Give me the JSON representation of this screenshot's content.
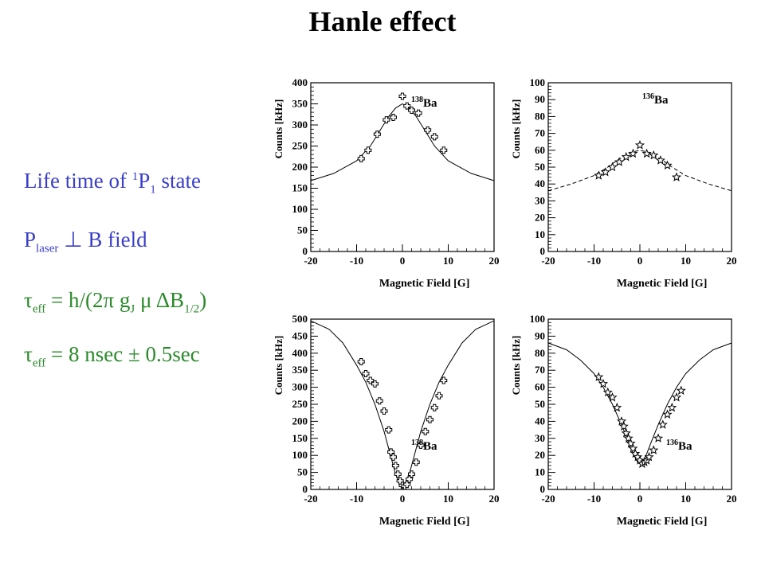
{
  "title": "Hanle effect",
  "text": {
    "line1": {
      "main": "Life time of ",
      "sup": "1",
      "mid": "P",
      "sub": "1",
      "tail": " state"
    },
    "line2": {
      "main": "P",
      "sub": "laser",
      "tail": " ⊥ B field"
    },
    "line3": {
      "tau": "τ",
      "sub": "eff",
      "mid": " = h/(2π g",
      "sub2": "J",
      "mid2": " μ ΔB",
      "sub3": "1/2",
      "tail": ")"
    },
    "line4": {
      "tau": "τ",
      "sub": "eff",
      "tail": " = 8 nsec ± 0.5sec"
    }
  },
  "colors": {
    "blue_text": "#3a3ec8",
    "green_text": "#2a8a2a"
  },
  "chart_data": [
    {
      "type": "scatter",
      "isotope_mass": "138",
      "isotope_symbol": "Ba",
      "xlabel": "Magnetic Field [G]",
      "ylabel": "Counts [kHz]",
      "xlim": [
        -20,
        20
      ],
      "ylim": [
        0,
        400
      ],
      "xticks": [
        -20,
        -10,
        0,
        10,
        20
      ],
      "yticks": [
        0,
        50,
        100,
        150,
        200,
        250,
        300,
        350,
        400
      ],
      "marker": "cross",
      "fit_style": "solid",
      "points": [
        [
          -9,
          220
        ],
        [
          -7.5,
          240
        ],
        [
          -5.5,
          278
        ],
        [
          -3.5,
          312
        ],
        [
          -2,
          318
        ],
        [
          0,
          368
        ],
        [
          1,
          345
        ],
        [
          2,
          335
        ],
        [
          3.5,
          328
        ],
        [
          5.5,
          288
        ],
        [
          7,
          272
        ],
        [
          9,
          240
        ]
      ],
      "fit_curve": [
        [
          -20,
          168
        ],
        [
          -15,
          185
        ],
        [
          -10,
          215
        ],
        [
          -7,
          250
        ],
        [
          -5,
          285
        ],
        [
          -3,
          320
        ],
        [
          -1.5,
          340
        ],
        [
          0,
          350
        ],
        [
          1.5,
          340
        ],
        [
          3,
          320
        ],
        [
          5,
          285
        ],
        [
          7,
          250
        ],
        [
          10,
          215
        ],
        [
          15,
          185
        ],
        [
          20,
          168
        ]
      ]
    },
    {
      "type": "scatter",
      "isotope_mass": "136",
      "isotope_symbol": "Ba",
      "xlabel": "Magnetic Field [G]",
      "ylabel": "Counts [kHz]",
      "xlim": [
        -20,
        20
      ],
      "ylim": [
        0,
        100
      ],
      "xticks": [
        -20,
        -10,
        0,
        10,
        20
      ],
      "yticks": [
        0,
        10,
        20,
        30,
        40,
        50,
        60,
        70,
        80,
        90,
        100
      ],
      "marker": "star",
      "fit_style": "dashed",
      "points": [
        [
          -9,
          45
        ],
        [
          -7.5,
          47
        ],
        [
          -6,
          50
        ],
        [
          -4.5,
          53
        ],
        [
          -3,
          56
        ],
        [
          -1.5,
          58
        ],
        [
          0,
          63
        ],
        [
          1.5,
          58
        ],
        [
          3,
          57
        ],
        [
          4.5,
          54
        ],
        [
          6,
          51
        ],
        [
          8,
          44
        ]
      ],
      "fit_curve": [
        [
          -20,
          36
        ],
        [
          -15,
          40
        ],
        [
          -10,
          45
        ],
        [
          -7,
          50
        ],
        [
          -5,
          54
        ],
        [
          -3,
          57
        ],
        [
          -1.5,
          59
        ],
        [
          0,
          60
        ],
        [
          1.5,
          59
        ],
        [
          3,
          57
        ],
        [
          5,
          54
        ],
        [
          7,
          50
        ],
        [
          10,
          45
        ],
        [
          15,
          40
        ],
        [
          20,
          36
        ]
      ]
    },
    {
      "type": "scatter",
      "isotope_mass": "138",
      "isotope_symbol": "Ba",
      "xlabel": "Magnetic Field [G]",
      "ylabel": "Counts [kHz]",
      "xlim": [
        -20,
        20
      ],
      "ylim": [
        0,
        500
      ],
      "xticks": [
        -20,
        -10,
        0,
        10,
        20
      ],
      "yticks": [
        0,
        50,
        100,
        150,
        200,
        250,
        300,
        350,
        400,
        450,
        500
      ],
      "marker": "cross",
      "fit_style": "solid",
      "points": [
        [
          -9,
          375
        ],
        [
          -8,
          340
        ],
        [
          -7,
          320
        ],
        [
          -6,
          310
        ],
        [
          -5,
          260
        ],
        [
          -4,
          230
        ],
        [
          -3,
          175
        ],
        [
          -2.5,
          110
        ],
        [
          -2,
          95
        ],
        [
          -1.5,
          70
        ],
        [
          -1,
          45
        ],
        [
          -0.5,
          25
        ],
        [
          0,
          12
        ],
        [
          0.5,
          10
        ],
        [
          1,
          15
        ],
        [
          1.5,
          30
        ],
        [
          2,
          45
        ],
        [
          3,
          80
        ],
        [
          4,
          130
        ],
        [
          5,
          170
        ],
        [
          6,
          205
        ],
        [
          7,
          240
        ],
        [
          8,
          275
        ],
        [
          9,
          320
        ]
      ],
      "fit_curve": [
        [
          -20,
          495
        ],
        [
          -16,
          470
        ],
        [
          -13,
          430
        ],
        [
          -10,
          365
        ],
        [
          -8,
          315
        ],
        [
          -6,
          250
        ],
        [
          -4,
          170
        ],
        [
          -2.5,
          95
        ],
        [
          -1.5,
          45
        ],
        [
          -0.5,
          12
        ],
        [
          0,
          8
        ],
        [
          0.5,
          12
        ],
        [
          1.5,
          45
        ],
        [
          2.5,
          95
        ],
        [
          4,
          170
        ],
        [
          6,
          250
        ],
        [
          8,
          315
        ],
        [
          10,
          365
        ],
        [
          13,
          430
        ],
        [
          16,
          470
        ],
        [
          20,
          495
        ]
      ]
    },
    {
      "type": "scatter",
      "isotope_mass": "136",
      "isotope_symbol": "Ba",
      "xlabel": "Magnetic Field [G]",
      "ylabel": "Counts [kHz]",
      "xlim": [
        -20,
        20
      ],
      "ylim": [
        0,
        100
      ],
      "xticks": [
        -20,
        -10,
        0,
        10,
        20
      ],
      "yticks": [
        0,
        10,
        20,
        30,
        40,
        50,
        60,
        70,
        80,
        90,
        100
      ],
      "marker": "star",
      "fit_style": "solid",
      "points": [
        [
          -9,
          66
        ],
        [
          -8,
          62
        ],
        [
          -7,
          57
        ],
        [
          -6,
          54
        ],
        [
          -5,
          48
        ],
        [
          -4,
          40
        ],
        [
          -3.5,
          37
        ],
        [
          -3,
          33
        ],
        [
          -2.5,
          30
        ],
        [
          -2,
          27
        ],
        [
          -1.5,
          24
        ],
        [
          -1,
          21
        ],
        [
          -0.5,
          19
        ],
        [
          0,
          17
        ],
        [
          0.5,
          15
        ],
        [
          1,
          16
        ],
        [
          1.5,
          17
        ],
        [
          2,
          19
        ],
        [
          3,
          23
        ],
        [
          4,
          30
        ],
        [
          5,
          38
        ],
        [
          6,
          44
        ],
        [
          7,
          48
        ],
        [
          8,
          54
        ],
        [
          9,
          58
        ]
      ],
      "fit_curve": [
        [
          -20,
          86
        ],
        [
          -16,
          82
        ],
        [
          -13,
          76
        ],
        [
          -10,
          68
        ],
        [
          -8,
          60
        ],
        [
          -6,
          50
        ],
        [
          -4,
          38
        ],
        [
          -2.5,
          28
        ],
        [
          -1.5,
          21
        ],
        [
          -0.5,
          16
        ],
        [
          0,
          15
        ],
        [
          0.5,
          16
        ],
        [
          1.5,
          21
        ],
        [
          2.5,
          28
        ],
        [
          4,
          38
        ],
        [
          6,
          50
        ],
        [
          8,
          60
        ],
        [
          10,
          68
        ],
        [
          13,
          76
        ],
        [
          16,
          82
        ],
        [
          20,
          86
        ]
      ]
    }
  ]
}
